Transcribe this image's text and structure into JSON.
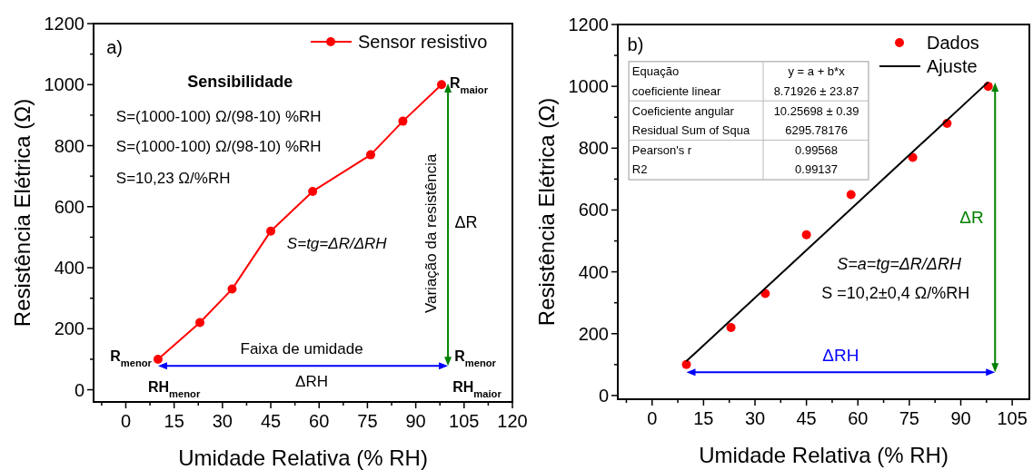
{
  "chart_data": [
    {
      "type": "line",
      "xlabel": "Umidade Relativa (% RH)",
      "ylabel": "Resistência Elétrica (Ω)",
      "x": [
        10,
        23,
        33,
        45,
        58,
        76,
        86,
        98
      ],
      "series": [
        {
          "name": "Sensor resistivo",
          "color": "#ff0000",
          "values": [
            100,
            220,
            330,
            520,
            650,
            770,
            880,
            1000
          ]
        }
      ],
      "xlim": [
        -10,
        120
      ],
      "xticks": [
        {
          "value": -7.5,
          "label": null
        },
        0,
        {
          "value": 7.5,
          "label": null
        },
        15,
        {
          "value": 22.5,
          "label": null
        },
        30,
        {
          "value": 37.5,
          "label": null
        },
        45,
        {
          "value": 52.5,
          "label": null
        },
        60,
        {
          "value": 67.5,
          "label": null
        },
        75,
        {
          "value": 82.5,
          "label": null
        },
        90,
        {
          "value": 97.5,
          "label": null
        },
        105,
        {
          "value": 112.5,
          "label": null
        },
        120
      ],
      "ylim": [
        -40,
        1200
      ],
      "yticks": [
        0,
        {
          "value": 100,
          "label": null
        },
        200,
        {
          "value": 300,
          "label": null
        },
        400,
        {
          "value": 500,
          "label": null
        },
        600,
        {
          "value": 700,
          "label": null
        },
        800,
        {
          "value": 900,
          "label": null
        },
        1000,
        {
          "value": 1100,
          "label": null
        },
        1200
      ],
      "marker": "circle",
      "legend": "top right",
      "annotations": [
        "a)",
        "Sensibilidade",
        "S=(1000-100) Ω/(98-10) %RH",
        "S=(1000-100) Ω/(98-10) %RH",
        "S=10,23 Ω/%RH",
        "S=tg=ΔR/ΔRH",
        "Variação da resistência",
        "Faixa de umidade",
        {
          "text": "R$_{menor}$",
          "x": 10,
          "y": 100
        },
        "RH$_{menor}$",
        {
          "text": "R$_{maior}$",
          "x": 98,
          "y": 1000
        },
        "R$_{menor}$",
        "RH$_{maior}$",
        "ΔR",
        "ΔRH"
      ]
    },
    {
      "type": "scatter",
      "xlabel": "Umidade Relativa (% RH)",
      "ylabel": "Resistência Elétrica (Ω)",
      "x": [
        10,
        23,
        33,
        45,
        58,
        76,
        86,
        98
      ],
      "series": [
        {
          "name": "Dados",
          "color": "#ff0000",
          "values": [
            100,
            220,
            330,
            520,
            650,
            770,
            880,
            1000
          ]
        },
        {
          "name": "Ajuste",
          "type": "line",
          "marker": "none",
          "color": "#000000",
          "x": [
            10,
            98
          ],
          "values": [
            111,
            1014
          ]
        }
      ],
      "xlim": [
        -10,
        110
      ],
      "xticks": [
        {
          "value": -7.5,
          "label": null
        },
        0,
        {
          "value": 7.5,
          "label": null
        },
        15,
        {
          "value": 22.5,
          "label": null
        },
        30,
        {
          "value": 37.5,
          "label": null
        },
        45,
        {
          "value": 52.5,
          "label": null
        },
        60,
        {
          "value": 67.5,
          "label": null
        },
        75,
        {
          "value": 82.5,
          "label": null
        },
        90,
        {
          "value": 97.5,
          "label": null
        },
        105
      ],
      "ylim": [
        -12,
        1200
      ],
      "yticks": [
        0,
        {
          "value": 100,
          "label": null
        },
        200,
        {
          "value": 300,
          "label": null
        },
        400,
        {
          "value": 500,
          "label": null
        },
        600,
        {
          "value": 700,
          "label": null
        },
        800,
        {
          "value": 900,
          "label": null
        },
        1000,
        {
          "value": 1100,
          "label": null
        },
        1200
      ],
      "marker": "circle",
      "legend": "top right",
      "annotations": [
        "b)",
        "Equação",
        "y = a + b*x",
        "coeficiente linear",
        "8.71926 ± 23.87",
        "Coeficiente angular",
        "10.25698 ± 0.39",
        "Residual Sum of Squa",
        "6295.78176",
        "Pearson's r",
        "0.99568",
        "R2",
        "0.99137",
        "S=a=tg=ΔR/ΔRH",
        "S =10,2±0,4 Ω/%RH",
        "ΔR",
        "ΔRH"
      ]
    }
  ]
}
